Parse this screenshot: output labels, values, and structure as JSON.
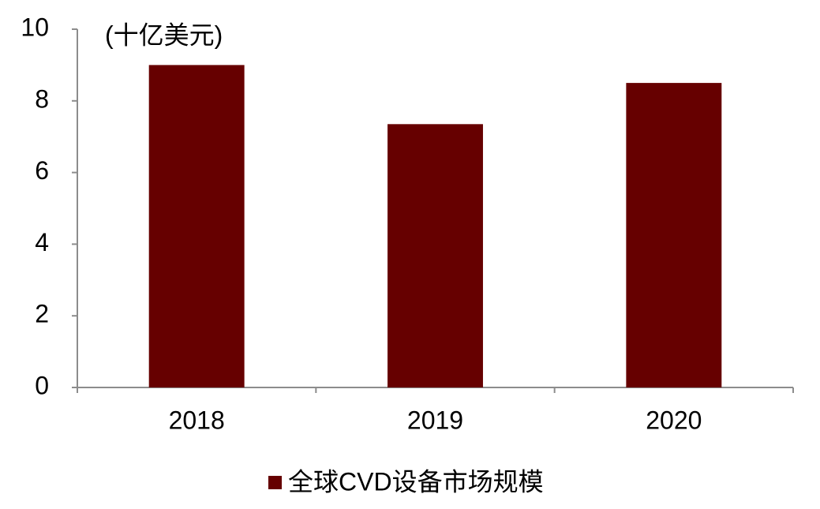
{
  "chart_data": {
    "type": "bar",
    "y_axis_label": "(十亿美元)",
    "categories": [
      "2018",
      "2019",
      "2020"
    ],
    "series": [
      {
        "name": "全球CVD设备市场规模",
        "color": "#660000",
        "values": [
          9.0,
          7.35,
          8.5
        ]
      }
    ],
    "ylim": [
      0,
      10
    ],
    "yticks": [
      0,
      2,
      4,
      6,
      8,
      10
    ],
    "grid": false,
    "legend": "bottom"
  }
}
